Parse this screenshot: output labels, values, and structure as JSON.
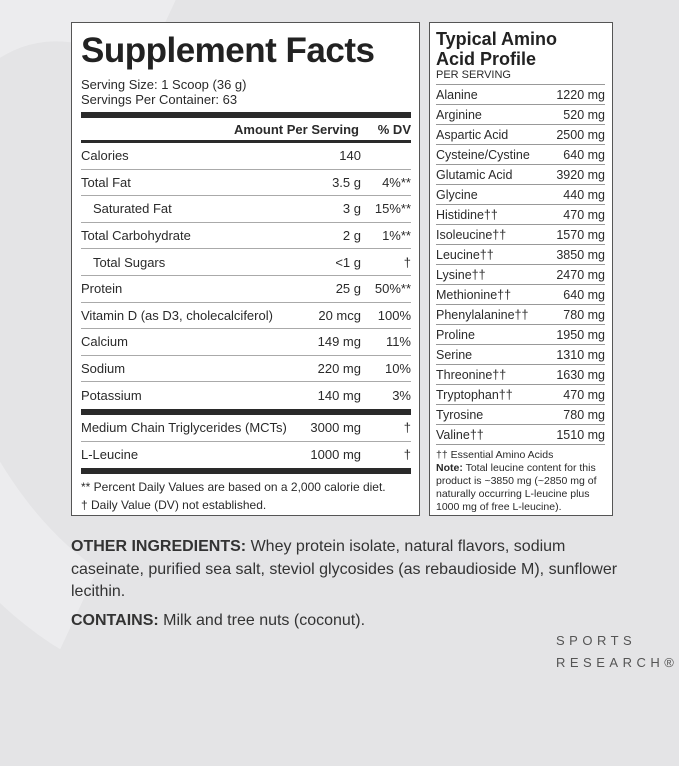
{
  "supplement_facts": {
    "title": "Supplement Facts",
    "serving_size": "Serving Size: 1 Scoop (36 g)",
    "servings_per_container": "Servings Per Container: 63",
    "header_amount": "Amount Per Serving",
    "header_dv": "% DV",
    "rows": [
      {
        "name": "Calories",
        "amount": "140",
        "dv": ""
      },
      {
        "name": "Total Fat",
        "amount": "3.5 g",
        "dv": "4%**"
      },
      {
        "name": "Saturated Fat",
        "amount": "3 g",
        "dv": "15%**"
      },
      {
        "name": "Total Carbohydrate",
        "amount": "2 g",
        "dv": "1%**"
      },
      {
        "name": "Total Sugars",
        "amount": "<1 g",
        "dv": "†"
      },
      {
        "name": "Protein",
        "amount": "25 g",
        "dv": "50%**"
      },
      {
        "name": "Vitamin D (as D3, cholecalciferol)",
        "amount": "20 mcg",
        "dv": "100%"
      },
      {
        "name": "Calcium",
        "amount": "149 mg",
        "dv": "11%"
      },
      {
        "name": "Sodium",
        "amount": "220 mg",
        "dv": "10%"
      },
      {
        "name": "Potassium",
        "amount": "140 mg",
        "dv": "3%"
      }
    ],
    "other_rows": [
      {
        "name": "Medium Chain Triglycerides (MCTs)",
        "amount": "3000 mg",
        "dv": "†"
      },
      {
        "name": "L-Leucine",
        "amount": "1000 mg",
        "dv": "†"
      }
    ],
    "footnote_1": "** Percent Daily Values are based on a 2,000 calorie diet.",
    "footnote_2": "† Daily Value (DV) not established."
  },
  "amino": {
    "title_1": "Typical Amino",
    "title_2": "Acid Profile",
    "subtitle": "PER SERVING",
    "rows": [
      {
        "name": "Alanine",
        "amount": "1220 mg"
      },
      {
        "name": "Arginine",
        "amount": "520 mg"
      },
      {
        "name": "Aspartic Acid",
        "amount": "2500 mg"
      },
      {
        "name": "Cysteine/Cystine",
        "amount": "640 mg"
      },
      {
        "name": "Glutamic Acid",
        "amount": "3920 mg"
      },
      {
        "name": "Glycine",
        "amount": "440 mg"
      },
      {
        "name": "Histidine††",
        "amount": "470 mg"
      },
      {
        "name": "Isoleucine††",
        "amount": "1570 mg"
      },
      {
        "name": "Leucine††",
        "amount": "3850 mg"
      },
      {
        "name": "Lysine††",
        "amount": "2470 mg"
      },
      {
        "name": "Methionine††",
        "amount": "640 mg"
      },
      {
        "name": "Phenylalanine††",
        "amount": "780 mg"
      },
      {
        "name": "Proline",
        "amount": "1950 mg"
      },
      {
        "name": "Serine",
        "amount": "1310 mg"
      },
      {
        "name": "Threonine††",
        "amount": "1630 mg"
      },
      {
        "name": "Tryptophan††",
        "amount": "470 mg"
      },
      {
        "name": "Tyrosine",
        "amount": "780 mg"
      },
      {
        "name": "Valine††",
        "amount": "1510 mg"
      }
    ],
    "footnote": "†† Essential Amino Acids",
    "note_label": "Note:",
    "note_text": " Total leucine content for this product is ~3850 mg (~2850 mg of naturally occurring L-leucine plus 1000 mg of free L-leucine)."
  },
  "other_ingredients": {
    "label": "OTHER INGREDIENTS:",
    "text": " Whey protein isolate, natural flavors, sodium caseinate, purified sea salt, steviol glycosides (as rebaudioside M), sunflower lecithin."
  },
  "contains": {
    "label": "CONTAINS:",
    "text": " Milk and tree nuts (coconut)."
  },
  "brand": {
    "line1": "SPORTS",
    "line2": "RESEARCH®"
  }
}
